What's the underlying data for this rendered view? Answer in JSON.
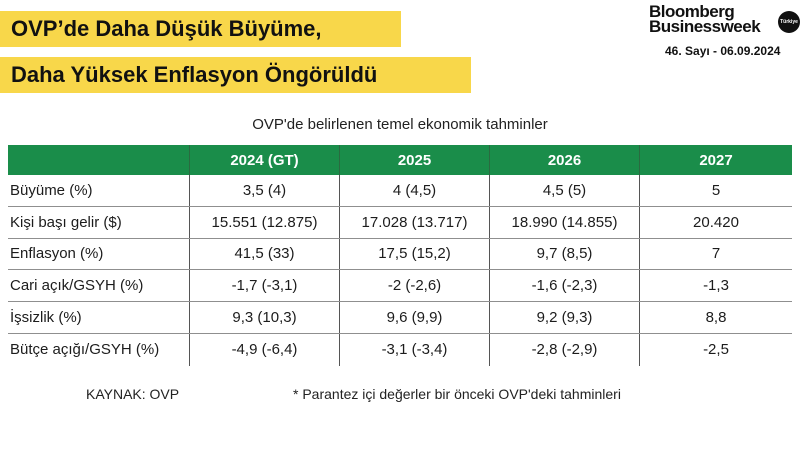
{
  "headline": {
    "line1": "OVP’de Daha Düşük Büyüme,",
    "line2": "Daha Yüksek Enflasyon Öngörüldü",
    "highlight_color": "#f8d74a"
  },
  "brand": {
    "name_line1": "Bloomberg",
    "name_line2": "Businessweek",
    "badge": "Türkiye",
    "issue": "46. Sayı - 06.09.2024"
  },
  "table": {
    "title": "OVP'de belirlenen temel ekonomik tahminler",
    "header_color": "#1a8d4a",
    "columns": [
      "",
      "2024 (GT)",
      "2025",
      "2026",
      "2027"
    ],
    "rows": [
      {
        "label": "Büyüme (%)",
        "values": [
          "3,5 (4)",
          "4 (4,5)",
          "4,5 (5)",
          "5"
        ]
      },
      {
        "label": "Kişi başı gelir ($)",
        "values": [
          "15.551 (12.875)",
          "17.028 (13.717)",
          "18.990 (14.855)",
          "20.420"
        ]
      },
      {
        "label": "Enflasyon (%)",
        "values": [
          "41,5 (33)",
          "17,5 (15,2)",
          "9,7 (8,5)",
          "7"
        ]
      },
      {
        "label": "Cari açık/GSYH (%)",
        "values": [
          "-1,7 (-3,1)",
          "-2 (-2,6)",
          "-1,6 (-2,3)",
          "-1,3"
        ]
      },
      {
        "label": "İşsizlik (%)",
        "values": [
          "9,3 (10,3)",
          "9,6 (9,9)",
          "9,2 (9,3)",
          "8,8"
        ]
      },
      {
        "label": "Bütçe açığı/GSYH (%)",
        "values": [
          "-4,9 (-6,4)",
          "-3,1 (-3,4)",
          "-2,8 (-2,9)",
          "-2,5"
        ]
      }
    ]
  },
  "footer": {
    "source": "KAYNAK: OVP",
    "note": "* Parantez içi değerler bir önceki OVP'deki tahminleri"
  }
}
